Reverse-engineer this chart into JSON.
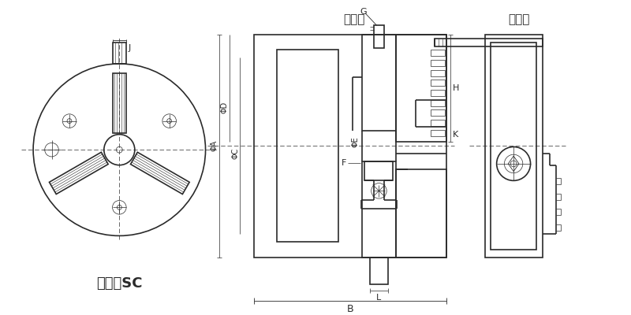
{
  "bg_color": "#ffffff",
  "line_color": "#2a2a2a",
  "title_front": "前孔型",
  "title_rear": "后孔型",
  "title_bottom": "普通型SC",
  "label_J": "J",
  "label_G": "G",
  "label_H": "H",
  "label_K": "K",
  "label_F": "F",
  "label_L": "L",
  "label_B": "B",
  "label_phiA": "ΦA",
  "label_phiD": "ΦD",
  "label_phiC": "ΦC",
  "label_phiE": "ΦE",
  "thick_line": 1.2,
  "thin_line": 0.5,
  "figsize": [
    8.0,
    4.0
  ],
  "dpi": 100
}
